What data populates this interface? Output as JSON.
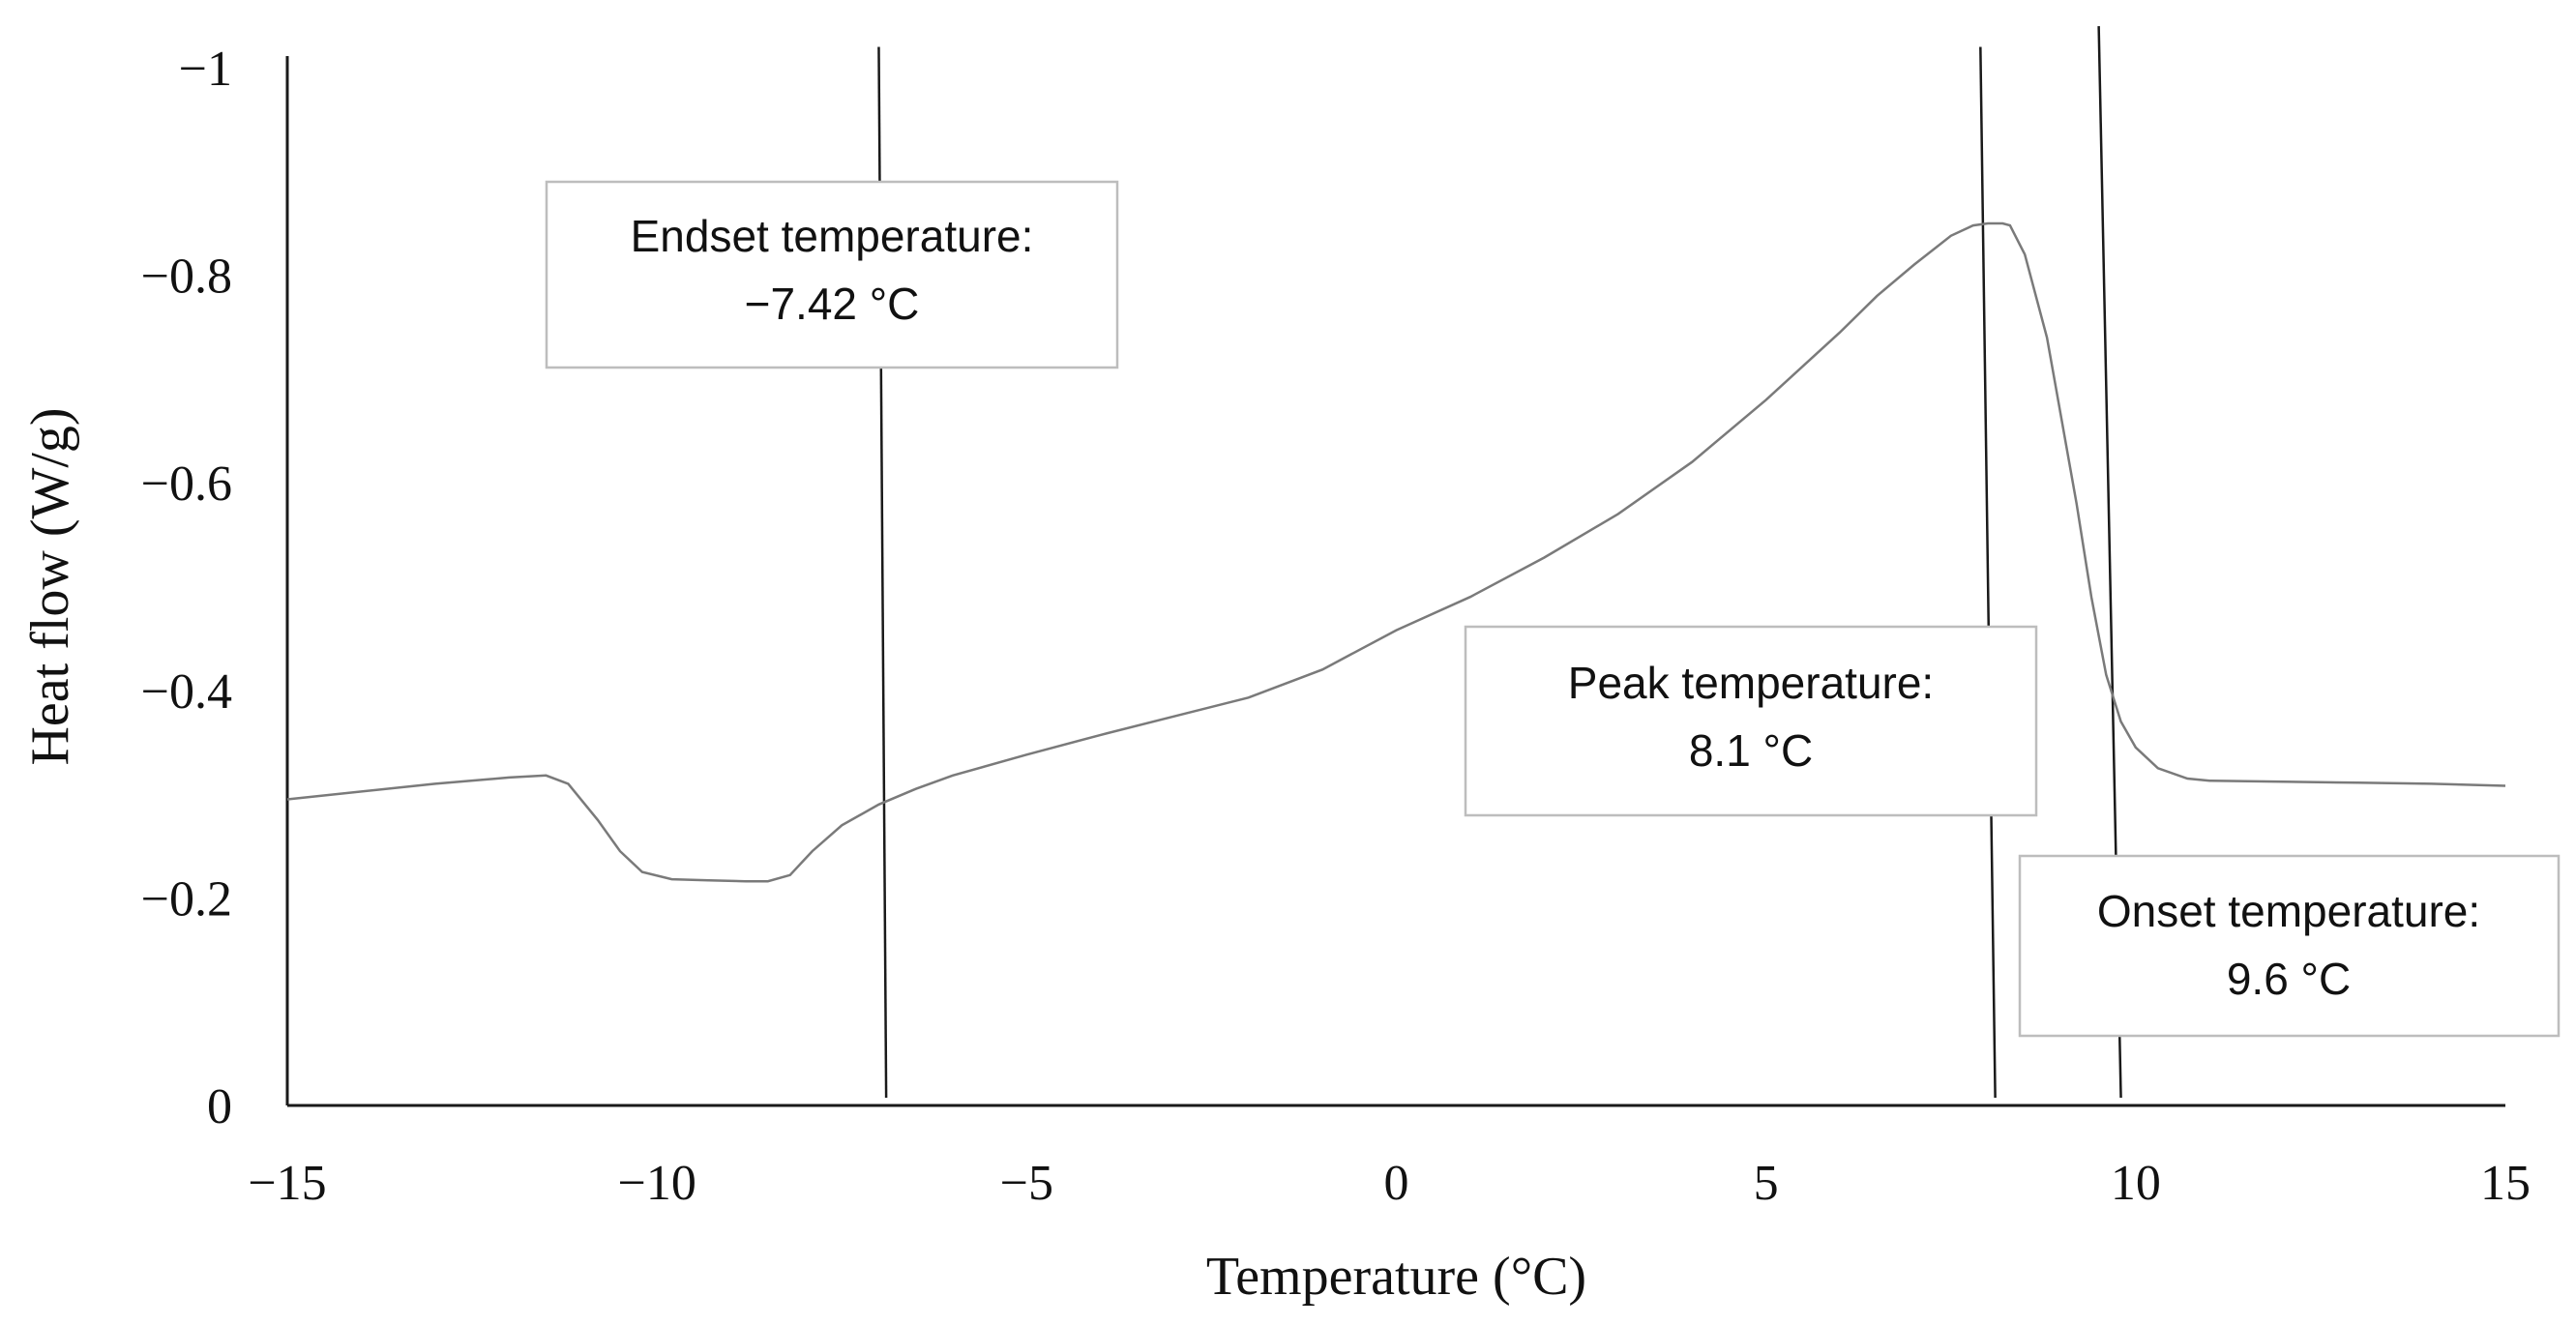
{
  "chart_data": {
    "type": "line",
    "title": "",
    "xlabel": "Temperature (°C)",
    "ylabel": "Heat flow (W/g)",
    "xlim": [
      -15,
      15
    ],
    "ylim": [
      0,
      -1
    ],
    "x_ticks": [
      -15,
      -10,
      -5,
      0,
      5,
      10,
      15
    ],
    "x_tick_labels": [
      "−15",
      "−10",
      "−5",
      "0",
      "5",
      "10",
      "15"
    ],
    "y_ticks": [
      0,
      -0.2,
      -0.4,
      -0.6,
      -0.8,
      -1
    ],
    "y_tick_labels": [
      "0",
      "−0.2",
      "−0.4",
      "−0.6",
      "−0.8",
      "−1"
    ],
    "grid": false,
    "series": [
      {
        "color": "#7a7a7a",
        "x": [
          -15,
          -13,
          -12,
          -11.5,
          -11.2,
          -10.8,
          -10.5,
          -10.2,
          -9.8,
          -9.3,
          -8.8,
          -8.5,
          -8.2,
          -7.9,
          -7.5,
          -7,
          -6.5,
          -6,
          -5,
          -4,
          -3,
          -2,
          -1,
          0,
          1,
          2,
          3,
          4,
          5,
          6,
          6.5,
          7,
          7.5,
          7.8,
          8.0,
          8.2,
          8.3,
          8.5,
          8.8,
          9.0,
          9.2,
          9.4,
          9.6,
          9.8,
          10.0,
          10.3,
          10.7,
          11,
          12,
          13,
          14,
          15
        ],
        "y": [
          -0.295,
          -0.31,
          -0.316,
          -0.318,
          -0.31,
          -0.275,
          -0.245,
          -0.225,
          -0.218,
          -0.217,
          -0.216,
          -0.216,
          -0.222,
          -0.245,
          -0.27,
          -0.29,
          -0.305,
          -0.318,
          -0.338,
          -0.357,
          -0.375,
          -0.393,
          -0.42,
          -0.458,
          -0.49,
          -0.528,
          -0.57,
          -0.62,
          -0.68,
          -0.745,
          -0.78,
          -0.81,
          -0.838,
          -0.848,
          -0.85,
          -0.85,
          -0.848,
          -0.82,
          -0.74,
          -0.66,
          -0.58,
          -0.49,
          -0.415,
          -0.37,
          -0.345,
          -0.325,
          -0.315,
          -0.313,
          -0.312,
          -0.311,
          -0.31,
          -0.308
        ]
      }
    ],
    "markers": [
      {
        "x_top": -7.0,
        "x_bottom": -6.9,
        "y_top": -1.02
      },
      {
        "x_top": 7.9,
        "x_bottom": 8.1,
        "y_top": -1.02
      },
      {
        "x_top": 9.5,
        "x_bottom": 9.8,
        "y_top": -1.04
      }
    ],
    "annotations": [
      {
        "title": "Endset temperature:",
        "value": "−7.42 °C"
      },
      {
        "title": "Peak temperature:",
        "value": "8.1 °C"
      },
      {
        "title": "Onset temperature:",
        "value": "9.6 °C"
      }
    ]
  }
}
